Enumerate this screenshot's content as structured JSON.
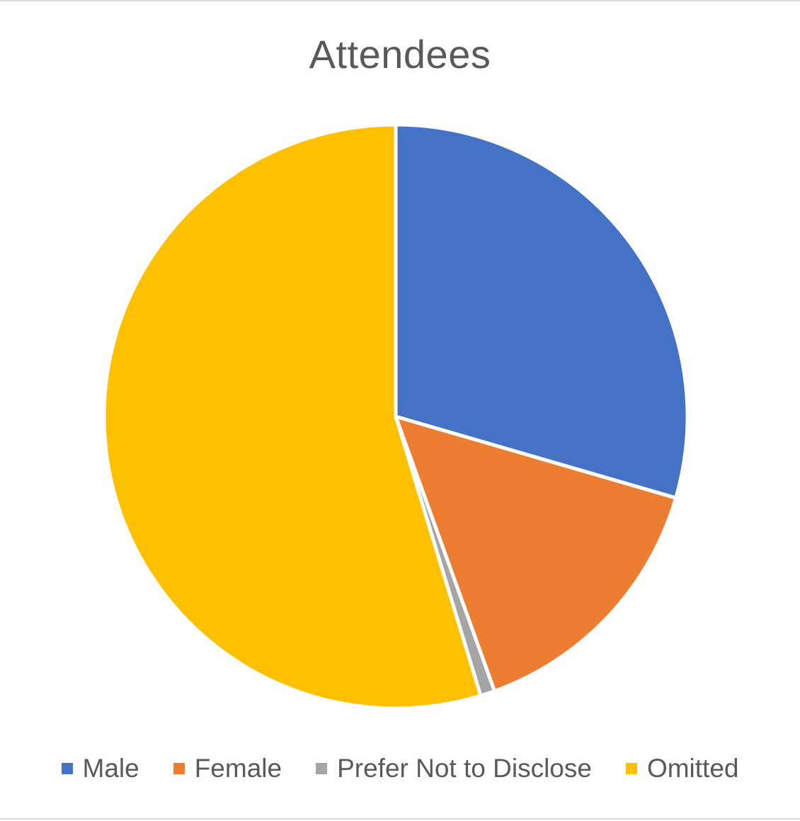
{
  "chart_data": {
    "type": "pie",
    "title": "Attendees",
    "categories": [
      "Male",
      "Female",
      "Prefer Not to Disclose",
      "Omitted"
    ],
    "values": [
      29.5,
      15.0,
      0.8,
      54.7
    ],
    "colors": [
      "#4472C4",
      "#ED7D31",
      "#A5A5A5",
      "#FFC000"
    ],
    "legend_position": "bottom",
    "start_angle": "12 o'clock",
    "direction": "clockwise"
  }
}
